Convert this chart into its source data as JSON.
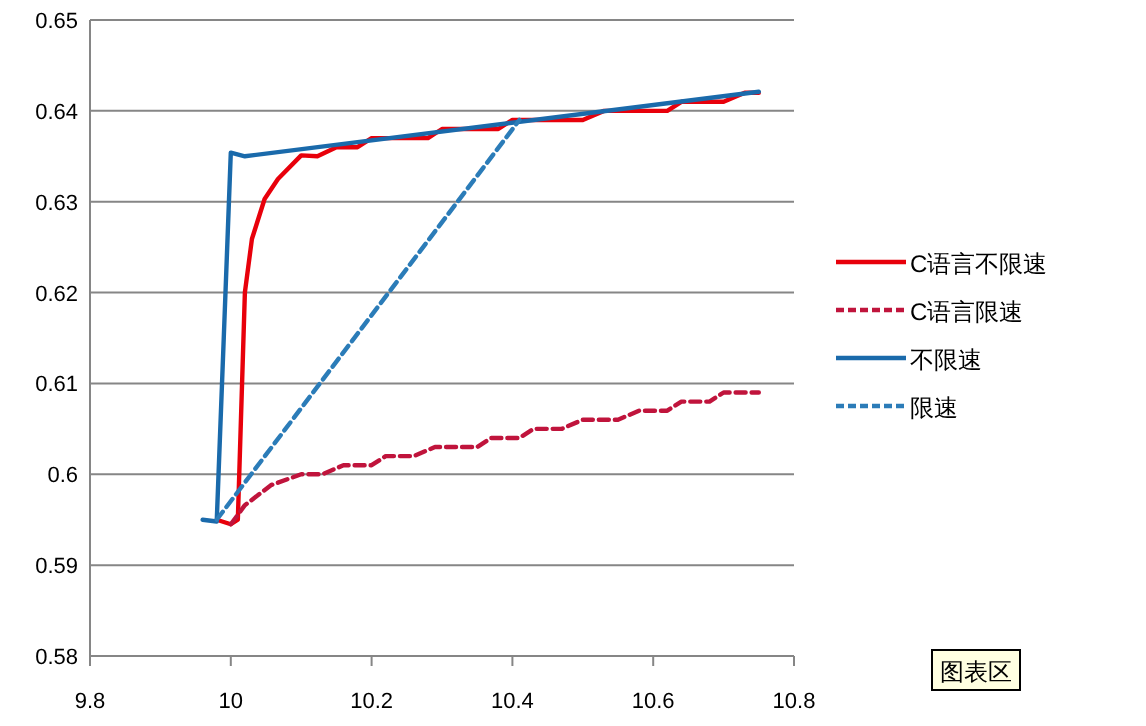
{
  "chart_data": {
    "type": "line",
    "xlim": [
      9.8,
      10.8
    ],
    "xticks": [
      9.8,
      10,
      10.2,
      10.4,
      10.6,
      10.8
    ],
    "ylim": [
      0.58,
      0.65
    ],
    "yticks": [
      0.58,
      0.59,
      0.6,
      0.61,
      0.62,
      0.63,
      0.64,
      0.65
    ],
    "grid": "y",
    "legend": "right",
    "line_style": "solid",
    "series": [
      {
        "name": "C语言不限速",
        "color": "#e8000b",
        "x": [
          9.98,
          10.0,
          10.01,
          10.02,
          10.03,
          10.048,
          10.067,
          10.1,
          10.123,
          10.15,
          10.18,
          10.2,
          10.25,
          10.28,
          10.3,
          10.35,
          10.38,
          10.4,
          10.45,
          10.5,
          10.53,
          10.6,
          10.62,
          10.64,
          10.7,
          10.73,
          10.75
        ],
        "values": [
          0.595,
          0.5945,
          0.595,
          0.62,
          0.6259,
          0.6303,
          0.6325,
          0.6351,
          0.635,
          0.636,
          0.636,
          0.637,
          0.637,
          0.637,
          0.638,
          0.638,
          0.638,
          0.639,
          0.639,
          0.639,
          0.64,
          0.64,
          0.64,
          0.641,
          0.641,
          0.642,
          0.642
        ]
      },
      {
        "name": "C语言限速",
        "color": "#c0143c",
        "line_style": "dashed",
        "x": [
          10.0,
          10.02,
          10.057,
          10.1,
          10.13,
          10.16,
          10.2,
          10.22,
          10.26,
          10.29,
          10.35,
          10.37,
          10.41,
          10.43,
          10.47,
          10.5,
          10.55,
          10.58,
          10.62,
          10.64,
          10.68,
          10.7,
          10.75
        ],
        "values": [
          0.5945,
          0.5966,
          0.5988,
          0.6,
          0.6,
          0.601,
          0.601,
          0.602,
          0.602,
          0.603,
          0.603,
          0.604,
          0.604,
          0.605,
          0.605,
          0.606,
          0.606,
          0.607,
          0.607,
          0.608,
          0.608,
          0.609,
          0.609
        ]
      },
      {
        "name": "不限速",
        "color": "#1a6aab",
        "x": [
          9.96,
          9.98,
          9.99,
          10.0,
          10.02,
          10.75
        ],
        "values": [
          0.595,
          0.5948,
          0.615,
          0.6354,
          0.635,
          0.6421
        ]
      },
      {
        "name": "限速",
        "color": "#2b7cb8",
        "line_style": "dashed",
        "x": [
          9.98,
          10.41
        ],
        "values": [
          0.595,
          0.639
        ]
      }
    ],
    "annotations": [
      "图表区"
    ]
  }
}
